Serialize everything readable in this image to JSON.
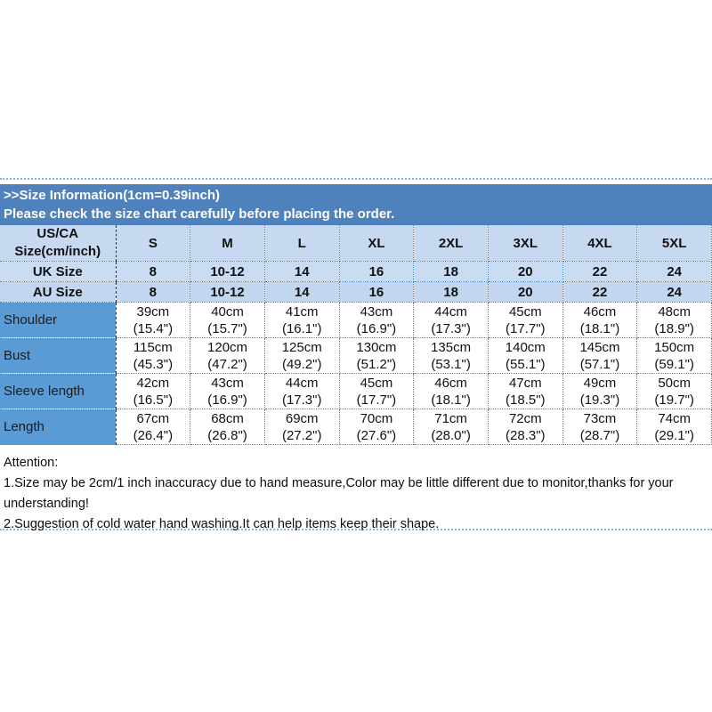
{
  "banner": {
    "title": ">>Size Information(1cm=0.39inch)",
    "subtitle": "Please check the size chart carefully before placing the order."
  },
  "table": {
    "corner_header": "US/CA\nSize(cm/inch)",
    "size_headers": [
      "S",
      "M",
      "L",
      "XL",
      "2XL",
      "3XL",
      "4XL",
      "5XL"
    ],
    "size_rows": [
      {
        "label": "UK Size",
        "values": [
          "8",
          "10-12",
          "14",
          "16",
          "18",
          "20",
          "22",
          "24"
        ]
      },
      {
        "label": "AU Size",
        "values": [
          "8",
          "10-12",
          "14",
          "16",
          "18",
          "20",
          "22",
          "24"
        ]
      }
    ],
    "measure_rows": [
      {
        "label": "Shoulder",
        "values": [
          "39cm\n(15.4\")",
          "40cm\n(15.7\")",
          "41cm\n(16.1\")",
          "43cm\n(16.9\")",
          "44cm\n(17.3\")",
          "45cm\n(17.7\")",
          "46cm\n(18.1\")",
          "48cm\n(18.9\")"
        ]
      },
      {
        "label": "Bust",
        "values": [
          "115cm\n(45.3\")",
          "120cm\n(47.2\")",
          "125cm\n(49.2\")",
          "130cm\n(51.2\")",
          "135cm\n(53.1\")",
          "140cm\n(55.1\")",
          "145cm\n(57.1\")",
          "150cm\n(59.1\")"
        ]
      },
      {
        "label": "Sleeve length",
        "values": [
          "42cm\n(16.5\")",
          "43cm\n(16.9\")",
          "44cm\n(17.3\")",
          "45cm\n(17.7\")",
          "46cm\n(18.1\")",
          "47cm\n(18.5\")",
          "49cm\n(19.3\")",
          "50cm\n(19.7\")"
        ]
      },
      {
        "label": "Length",
        "values": [
          "67cm\n(26.4\")",
          "68cm\n(26.8\")",
          "69cm\n(27.2\")",
          "70cm\n(27.6\")",
          "71cm\n(28.0\")",
          "72cm\n(28.3\")",
          "73cm\n(28.7\")",
          "74cm\n(29.1\")"
        ]
      }
    ]
  },
  "attention": {
    "heading": "Attention:",
    "lines": [
      "1.Size may be 2cm/1 inch inaccuracy due to hand measure,Color may be little different due to monitor,thanks for your understanding!",
      "2.Suggestion of cold water hand washing.It can help items keep their shape."
    ]
  },
  "colors": {
    "banner_bg": "#4f81bd",
    "header_row_bg": "#c6d9f0",
    "label_column_bg": "#5b9bd5"
  }
}
